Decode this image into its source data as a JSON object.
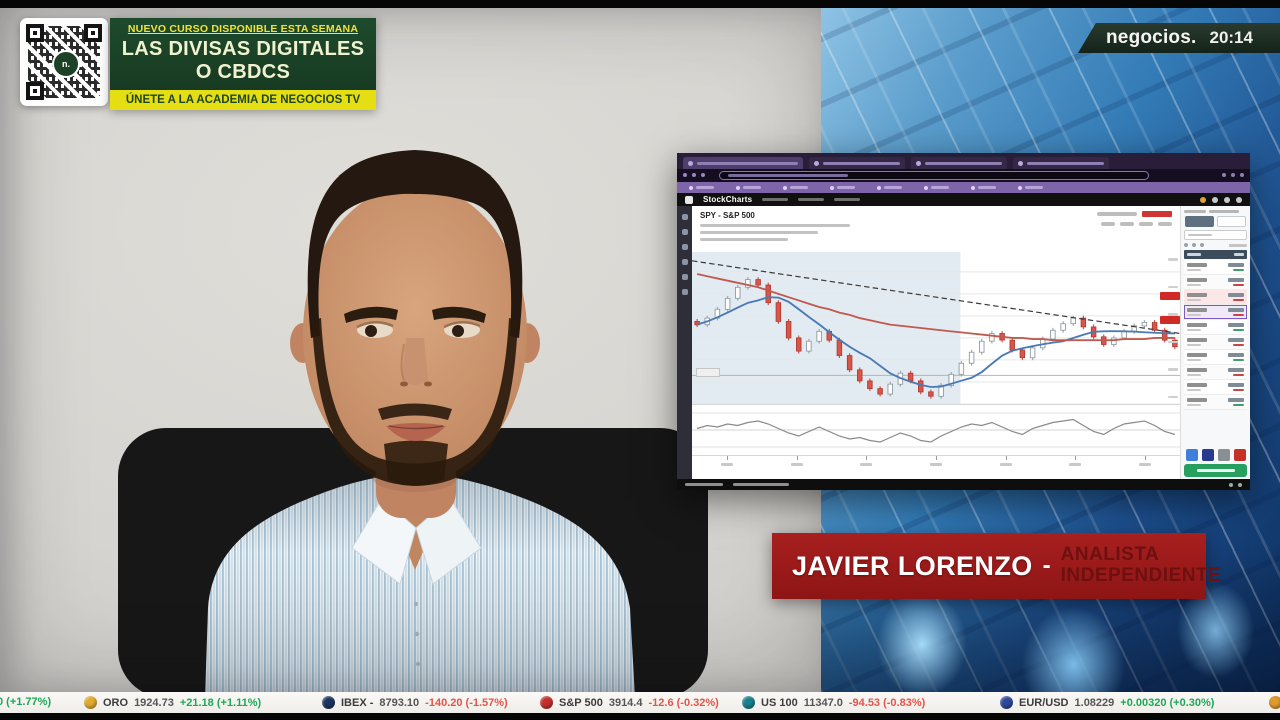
{
  "promo": {
    "line1": "NUEVO CURSO DISPONIBLE ESTA SEMANA",
    "line2": "LAS DIVISAS DIGITALES",
    "line3": "O CBDCS",
    "cta": "ÚNETE A LA ACADEMIA DE NEGOCIOS TV",
    "qr_center_label": "n."
  },
  "channel": {
    "name": "negocios.",
    "time": "20:14"
  },
  "lower_third": {
    "name": "JAVIER LORENZO",
    "separator": "-",
    "role_line1": "ANALISTA",
    "role_line2": "INDEPENDIENTE"
  },
  "stockcharts": {
    "brand": "StockCharts"
  },
  "chart_panel": {
    "symbol_label": "SPY - S&P 500"
  },
  "chart_data": {
    "type": "candlestick",
    "title": "SPY - S&P 500 daily chart with 50/200-day moving averages, descending trendline and lower oscillator panel",
    "price_range": [
      340,
      478
    ],
    "shaded_region_end_frac": 0.55,
    "support_level": 366,
    "closes": [
      412,
      418,
      426,
      436,
      446,
      453,
      448,
      432,
      415,
      400,
      388,
      397,
      406,
      398,
      384,
      371,
      361,
      354,
      349,
      358,
      368,
      361,
      351,
      347,
      357,
      367,
      377,
      387,
      397,
      404,
      398,
      389,
      382,
      391,
      399,
      407,
      413,
      418,
      410,
      401,
      394,
      400,
      406,
      411,
      414,
      407,
      398,
      392
    ],
    "ma50_window": 7,
    "ma200": [
      458,
      456,
      454,
      452,
      450,
      448,
      446,
      443,
      440,
      437,
      434,
      431,
      428,
      426,
      423,
      421,
      418,
      416,
      414,
      412,
      411,
      410,
      409,
      408,
      407,
      406,
      405,
      404,
      403,
      402,
      401,
      400,
      400,
      399,
      399,
      398,
      398,
      398,
      398,
      398,
      398,
      398,
      399,
      399,
      399,
      400,
      400,
      400
    ],
    "trendline": {
      "start": 470,
      "end": 404,
      "style": "dashed"
    },
    "indicator": [
      0.1,
      0.3,
      0.2,
      0.4,
      0.3,
      0.5,
      0.6,
      0.4,
      0.1,
      -0.2,
      -0.4,
      -0.1,
      0.2,
      -0.1,
      -0.4,
      -0.6,
      -0.5,
      -0.7,
      -0.8,
      -0.5,
      -0.2,
      -0.4,
      -0.7,
      -0.8,
      -0.4,
      -0.1,
      0.2,
      0.4,
      0.3,
      0.5,
      0.2,
      -0.1,
      -0.3,
      0.1,
      0.3,
      0.5,
      0.6,
      0.7,
      0.3,
      -0.1,
      -0.3,
      0.1,
      0.4,
      0.5,
      0.6,
      0.3,
      -0.1,
      -0.3
    ]
  },
  "ticker": {
    "partial_left": "0 (+1.77%)",
    "colors": {
      "up": "#1ea757",
      "down": "#e25549"
    },
    "items": [
      {
        "name": "oro",
        "icon": "gold-coin-icon",
        "icon_color": "#e0ac2e",
        "label": "ORO",
        "value": "1924.73",
        "change": "+21.18 (+1.11%)",
        "direction": "up"
      },
      {
        "name": "ibex",
        "icon": "ibex-badge-icon",
        "icon_color": "#1d3461",
        "label": "IBEX -",
        "value": "8793.10",
        "change": "-140.20 (-1.57%)",
        "direction": "down"
      },
      {
        "name": "sp500",
        "icon": "sp500-badge-icon",
        "icon_color": "#c62f2f",
        "label": "S&P 500",
        "value": "3914.4",
        "change": "-12.6 (-0.32%)",
        "direction": "down"
      },
      {
        "name": "us100",
        "icon": "us100-badge-icon",
        "icon_color": "#17808f",
        "label": "US 100",
        "value": "11347.0",
        "change": "-94.53 (-0.83%)",
        "direction": "down"
      },
      {
        "name": "eurusd",
        "icon": "eurusd-badge-icon",
        "icon_color": "#2b4a9b",
        "label": "EUR/USD",
        "value": "1.08229",
        "change": "+0.00320 (+0.30%)",
        "direction": "up"
      }
    ]
  }
}
